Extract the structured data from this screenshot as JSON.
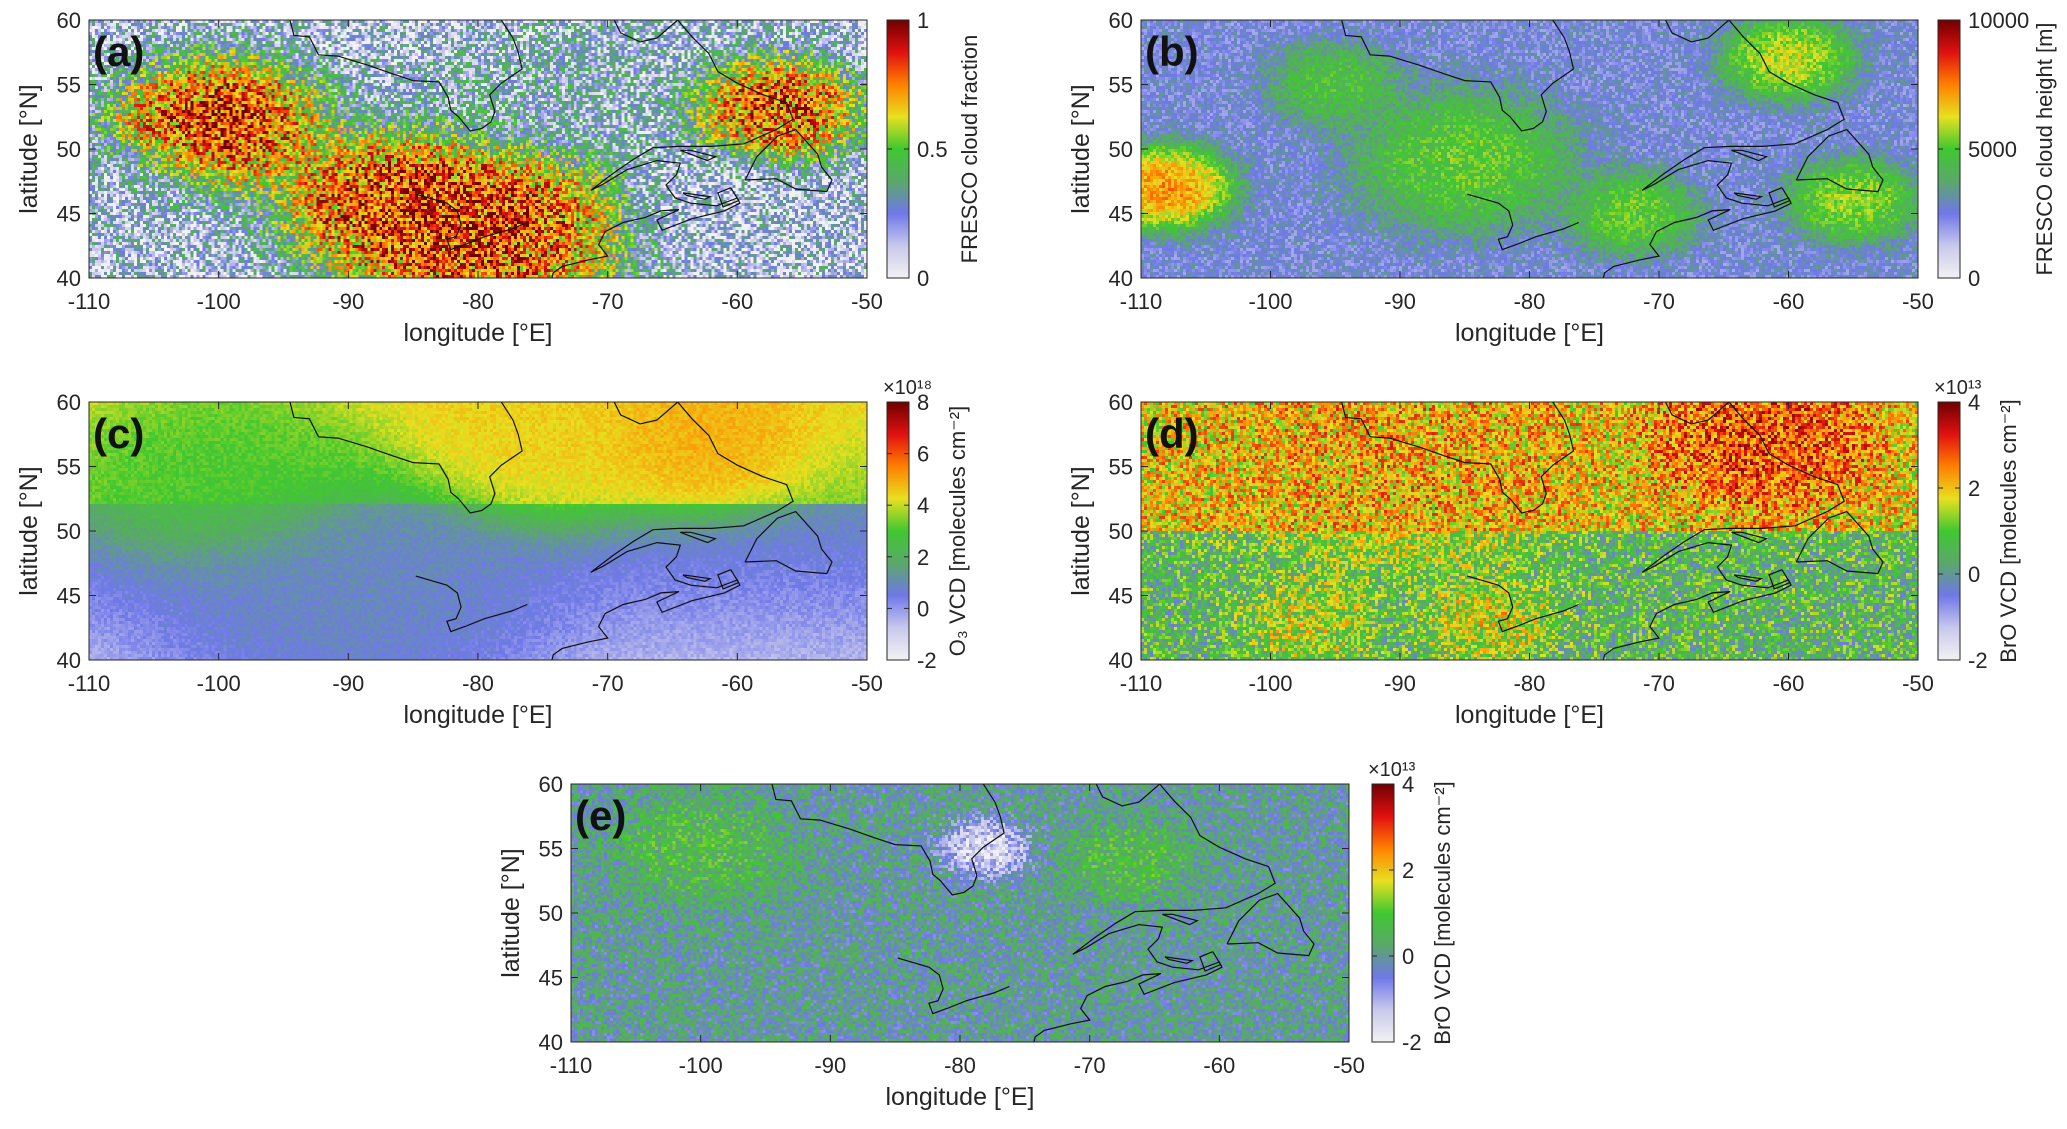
{
  "figure": {
    "colors": {
      "colormap": [
        "#f2f2f2",
        "#c8c8ec",
        "#6f78e8",
        "#5aa86a",
        "#40c830",
        "#e8e020",
        "#ff8000",
        "#e01010",
        "#700000"
      ],
      "coastline": "#101010",
      "axis": "#262626"
    }
  },
  "chart_data": [
    {
      "type": "heatmap",
      "panel_label": "(a)",
      "xlabel": "longitude [°E]",
      "ylabel": "latitude [°N]",
      "xlim": [
        -110,
        -50
      ],
      "ylim": [
        40,
        60
      ],
      "x_ticks": [
        -110,
        -100,
        -90,
        -80,
        -70,
        -60,
        -50
      ],
      "y_ticks": [
        40,
        45,
        50,
        55,
        60
      ],
      "x_tick_labels": [
        "-110",
        "-100",
        "-90",
        "-80",
        "-70",
        "-60",
        "-50"
      ],
      "y_tick_labels": [
        "40",
        "45",
        "50",
        "55",
        "60"
      ],
      "colorbar": {
        "label": "FRESCO cloud fraction",
        "limits": [
          0,
          1
        ],
        "ticks": [
          0,
          0.5,
          1
        ],
        "tick_labels": [
          "0",
          "0.5",
          "1"
        ],
        "exponent": ""
      },
      "features": [
        {
          "lon": -100,
          "lat": 52,
          "value": 0.95,
          "r": 5
        },
        {
          "lon": -80,
          "lat": 44,
          "value": 0.95,
          "r": 7
        },
        {
          "lon": -87,
          "lat": 46,
          "value": 0.9,
          "r": 5
        },
        {
          "lon": -57,
          "lat": 53,
          "value": 0.9,
          "r": 4
        },
        {
          "lon": -75,
          "lat": 55,
          "value": 0.25,
          "r": 6
        },
        {
          "lon": -107,
          "lat": 46,
          "value": 0.2,
          "r": 4
        },
        {
          "lon": -62,
          "lat": 46,
          "value": 0.15,
          "r": 4
        }
      ]
    },
    {
      "type": "heatmap",
      "panel_label": "(b)",
      "xlabel": "longitude [°E]",
      "ylabel": "latitude [°N]",
      "xlim": [
        -110,
        -50
      ],
      "ylim": [
        40,
        60
      ],
      "x_ticks": [
        -110,
        -100,
        -90,
        -80,
        -70,
        -60,
        -50
      ],
      "y_ticks": [
        40,
        45,
        50,
        55,
        60
      ],
      "x_tick_labels": [
        "-110",
        "-100",
        "-90",
        "-80",
        "-70",
        "-60",
        "-50"
      ],
      "y_tick_labels": [
        "40",
        "45",
        "50",
        "55",
        "60"
      ],
      "colorbar": {
        "label": "FRESCO cloud height [m]",
        "limits": [
          0,
          10000
        ],
        "ticks": [
          0,
          5000,
          10000
        ],
        "tick_labels": [
          "0",
          "5000",
          "10000"
        ],
        "exponent": ""
      },
      "features": [
        {
          "lon": -85,
          "lat": 49,
          "value": 5500,
          "r": 5
        },
        {
          "lon": -95,
          "lat": 55,
          "value": 5000,
          "r": 3
        },
        {
          "lon": -108,
          "lat": 47,
          "value": 8000,
          "r": 3
        },
        {
          "lon": -72,
          "lat": 45,
          "value": 5500,
          "r": 3
        },
        {
          "lon": -60,
          "lat": 57,
          "value": 6500,
          "r": 3
        },
        {
          "lon": -55,
          "lat": 46,
          "value": 6000,
          "r": 3
        }
      ]
    },
    {
      "type": "heatmap",
      "panel_label": "(c)",
      "xlabel": "longitude [°E]",
      "ylabel": "latitude [°N]",
      "xlim": [
        -110,
        -50
      ],
      "ylim": [
        40,
        60
      ],
      "x_ticks": [
        -110,
        -100,
        -90,
        -80,
        -70,
        -60,
        -50
      ],
      "y_ticks": [
        40,
        45,
        50,
        55,
        60
      ],
      "x_tick_labels": [
        "-110",
        "-100",
        "-90",
        "-80",
        "-70",
        "-60",
        "-50"
      ],
      "y_tick_labels": [
        "40",
        "45",
        "50",
        "55",
        "60"
      ],
      "colorbar": {
        "label": "O₃ VCD [molecules cm⁻²]",
        "limits": [
          -2,
          8
        ],
        "ticks": [
          -2,
          0,
          2,
          4,
          6,
          8
        ],
        "tick_labels": [
          "-2",
          "0",
          "2",
          "4",
          "6",
          "8"
        ],
        "exponent": "×10¹⁸"
      },
      "features": [
        {
          "lon": -63,
          "lat": 57,
          "value": 5.0,
          "r": 5
        },
        {
          "lon": -75,
          "lat": 57,
          "value": 4.5,
          "r": 6
        },
        {
          "lon": -100,
          "lat": 55,
          "value": 3.0,
          "r": 7
        },
        {
          "lon": -90,
          "lat": 44,
          "value": 1.0,
          "r": 9
        }
      ]
    },
    {
      "type": "heatmap",
      "panel_label": "(d)",
      "xlabel": "longitude [°E]",
      "ylabel": "latitude [°N]",
      "xlim": [
        -110,
        -50
      ],
      "ylim": [
        40,
        60
      ],
      "x_ticks": [
        -110,
        -100,
        -90,
        -80,
        -70,
        -60,
        -50
      ],
      "y_ticks": [
        40,
        45,
        50,
        55,
        60
      ],
      "x_tick_labels": [
        "-110",
        "-100",
        "-90",
        "-80",
        "-70",
        "-60",
        "-50"
      ],
      "y_tick_labels": [
        "40",
        "45",
        "50",
        "55",
        "60"
      ],
      "colorbar": {
        "label": "BrO VCD [molecules cm⁻²]",
        "limits": [
          -2,
          4
        ],
        "ticks": [
          -2,
          0,
          2,
          4
        ],
        "tick_labels": [
          "-2",
          "0",
          "2",
          "4"
        ],
        "exponent": "×10¹³"
      },
      "features": [
        {
          "lon": -62,
          "lat": 57,
          "value": 3.0,
          "r": 5
        },
        {
          "lon": -90,
          "lat": 56,
          "value": 2.2,
          "r": 8
        },
        {
          "lon": -97,
          "lat": 43,
          "value": 1.6,
          "r": 3
        },
        {
          "lon": -83,
          "lat": 43,
          "value": 1.8,
          "r": 3
        }
      ]
    },
    {
      "type": "heatmap",
      "panel_label": "(e)",
      "xlabel": "longitude [°E]",
      "ylabel": "latitude [°N]",
      "xlim": [
        -110,
        -50
      ],
      "ylim": [
        40,
        60
      ],
      "x_ticks": [
        -110,
        -100,
        -90,
        -80,
        -70,
        -60,
        -50
      ],
      "y_ticks": [
        40,
        45,
        50,
        55,
        60
      ],
      "x_tick_labels": [
        "-110",
        "-100",
        "-90",
        "-80",
        "-70",
        "-60",
        "-50"
      ],
      "y_tick_labels": [
        "40",
        "45",
        "50",
        "55",
        "60"
      ],
      "colorbar": {
        "label": "BrO VCD [molecules cm⁻²]",
        "limits": [
          -2,
          4
        ],
        "ticks": [
          -2,
          0,
          2,
          4
        ],
        "tick_labels": [
          "-2",
          "0",
          "2",
          "4"
        ],
        "exponent": "×10¹³"
      },
      "features": [
        {
          "lon": -100,
          "lat": 55,
          "value": 0.8,
          "r": 4
        },
        {
          "lon": -67,
          "lat": 54,
          "value": 0.8,
          "r": 3
        },
        {
          "lon": -78,
          "lat": 55,
          "value": -1.8,
          "r": 2
        }
      ]
    }
  ]
}
